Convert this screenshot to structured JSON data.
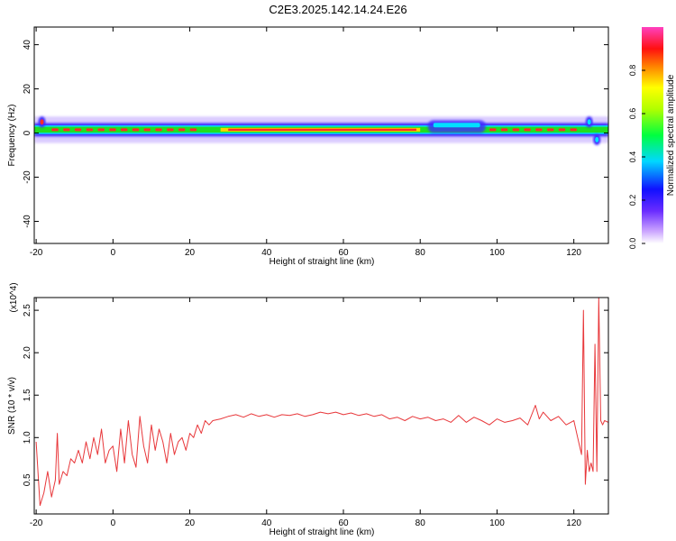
{
  "title": "C2E3.2025.142.14.24.E26",
  "colors": {
    "line": "#e8373a",
    "frame": "#000000",
    "band_core": "#ff2a2a",
    "band_mid": "#22dd22",
    "band_outer": "#3d2bff",
    "halo": "#b090ff",
    "background": "#ffffff"
  },
  "chart_data": [
    {
      "type": "heatmap",
      "title": "",
      "xlabel": "Height of straight line (km)",
      "ylabel": "Frequency (Hz)",
      "xlim": [
        -20.5,
        129
      ],
      "ylim": [
        -50,
        48
      ],
      "xticks": [
        "-20",
        "0",
        "20",
        "40",
        "60",
        "80",
        "100",
        "120"
      ],
      "yticks": [
        "-40",
        "-20",
        "0",
        "20",
        "40"
      ],
      "colorbar": {
        "label": "Normalized spectral amplitude",
        "range": [
          0,
          1
        ],
        "ticks": [
          "0.0",
          "0.2",
          "0.4",
          "0.6",
          "0.8"
        ],
        "colormap": "rainbow (magenta-violet-blue-cyan-green-yellow-orange-red-magenta)"
      },
      "band": {
        "center_freq_hz": 1.5,
        "half_width_hz": 3,
        "halo_half_width_hz": 6,
        "features": [
          {
            "x_km": -18.5,
            "freq_hz": 5,
            "amplitude": 0.9
          },
          {
            "x_km": 84,
            "freq_hz": 3,
            "amplitude": 0.6,
            "note": "broadening 82-97 km"
          },
          {
            "x_km": 124,
            "freq_hz": 5,
            "amplitude": 0.5
          },
          {
            "x_km": 126,
            "freq_hz": -3,
            "amplitude": 0.5
          }
        ]
      }
    },
    {
      "type": "line",
      "title": "",
      "xlabel": "Height of straight line (km)",
      "ylabel": "SNR (10 * v/v)",
      "ymultiplier": "(x10^4)",
      "xlim": [
        -20.5,
        129
      ],
      "ylim": [
        0.1,
        2.65
      ],
      "xticks": [
        "-20",
        "0",
        "20",
        "40",
        "60",
        "80",
        "100",
        "120"
      ],
      "yticks": [
        "0.5",
        "1.0",
        "1.5",
        "2.0",
        "2.5"
      ],
      "series": [
        {
          "x": [
            -20,
            -19,
            -18,
            -17,
            -16,
            -15,
            -14.5,
            -14,
            -13,
            -12,
            -11,
            -10,
            -9,
            -8,
            -7,
            -6,
            -5,
            -4,
            -3,
            -2,
            -1,
            0,
            1,
            2,
            3,
            4,
            5,
            6,
            7,
            8,
            9,
            10,
            11,
            12,
            13,
            14,
            15,
            16,
            17,
            18,
            19,
            20,
            21,
            22,
            23,
            24,
            25,
            26,
            28,
            30,
            32,
            34,
            36,
            38,
            40,
            42,
            44,
            46,
            48,
            50,
            52,
            54,
            56,
            58,
            60,
            62,
            64,
            66,
            68,
            70,
            72,
            74,
            76,
            78,
            80,
            82,
            84,
            86,
            88,
            90,
            92,
            94,
            96,
            98,
            100,
            102,
            104,
            106,
            108,
            110,
            111,
            112,
            114,
            116,
            118,
            120,
            121,
            122,
            122.5,
            123,
            123.5,
            124,
            124.5,
            125,
            125.5,
            126,
            126.5,
            127,
            127.5,
            128,
            129
          ],
          "y": [
            0.95,
            0.2,
            0.35,
            0.6,
            0.3,
            0.5,
            1.05,
            0.45,
            0.6,
            0.55,
            0.75,
            0.7,
            0.85,
            0.7,
            0.95,
            0.75,
            1.0,
            0.8,
            1.1,
            0.7,
            0.85,
            0.9,
            0.6,
            1.1,
            0.7,
            1.2,
            0.8,
            0.65,
            1.25,
            0.9,
            0.7,
            1.15,
            0.85,
            1.1,
            0.95,
            0.7,
            1.05,
            0.8,
            0.95,
            1.0,
            0.85,
            1.05,
            1.0,
            1.15,
            1.05,
            1.2,
            1.15,
            1.2,
            1.22,
            1.25,
            1.27,
            1.24,
            1.28,
            1.25,
            1.27,
            1.24,
            1.27,
            1.26,
            1.28,
            1.25,
            1.27,
            1.3,
            1.28,
            1.3,
            1.27,
            1.29,
            1.26,
            1.28,
            1.25,
            1.27,
            1.22,
            1.24,
            1.2,
            1.25,
            1.22,
            1.24,
            1.2,
            1.22,
            1.18,
            1.26,
            1.18,
            1.24,
            1.2,
            1.15,
            1.22,
            1.18,
            1.2,
            1.23,
            1.15,
            1.38,
            1.22,
            1.3,
            1.2,
            1.25,
            1.15,
            1.2,
            1.0,
            0.8,
            2.5,
            0.45,
            0.85,
            0.6,
            0.7,
            0.6,
            2.1,
            0.6,
            2.65,
            1.2,
            1.15,
            1.2,
            1.18
          ]
        }
      ]
    }
  ]
}
